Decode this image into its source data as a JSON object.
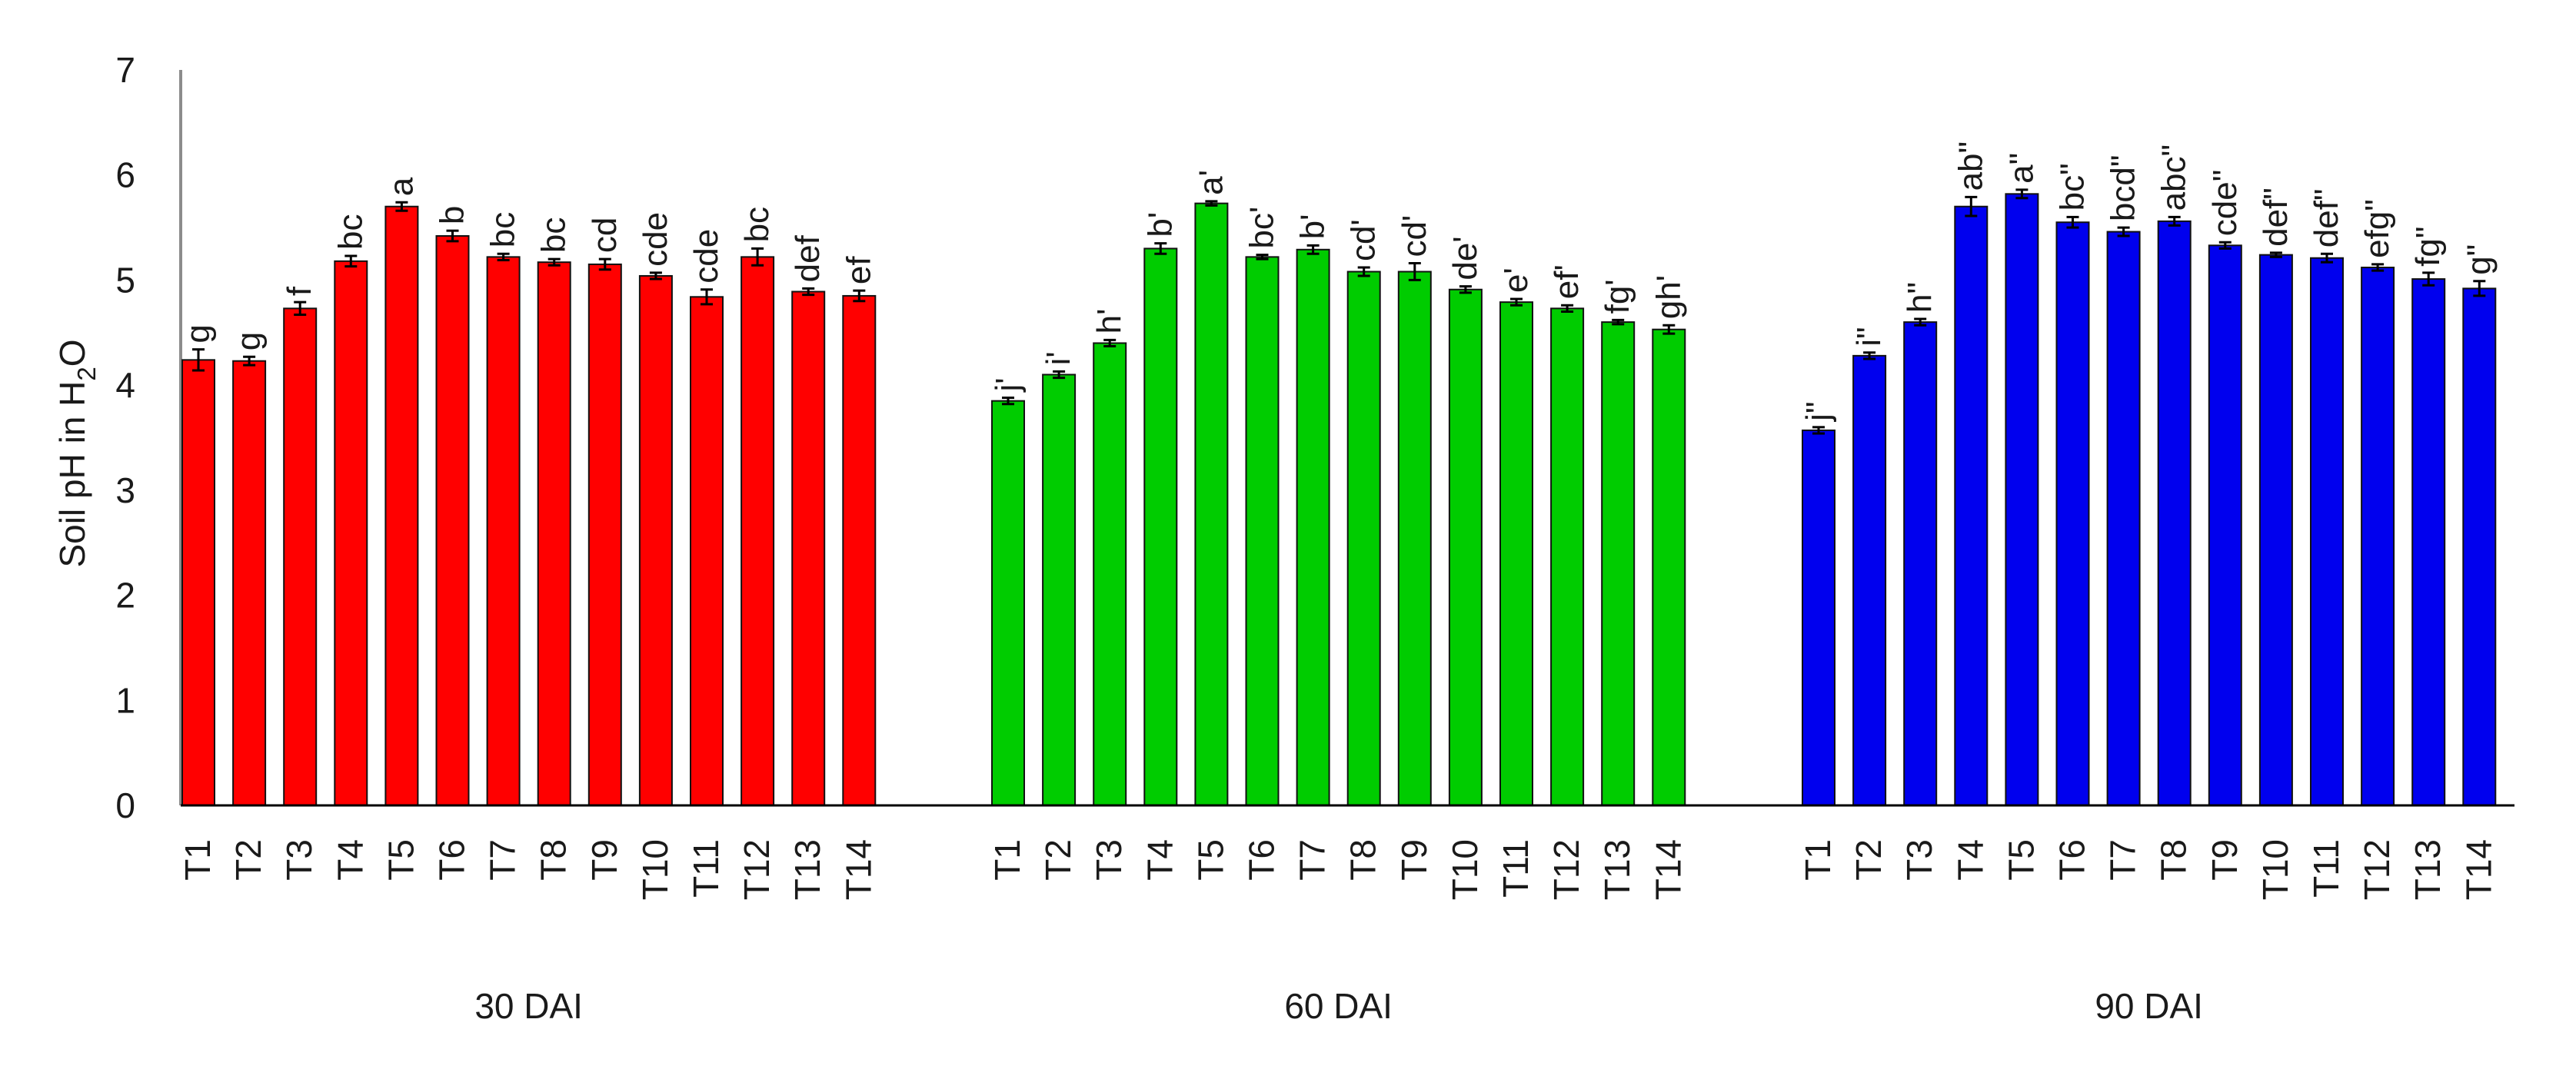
{
  "chart_data": {
    "type": "bar",
    "ylabel_parts": [
      "Soil pH in H",
      "2",
      "O"
    ],
    "ylim": [
      0,
      7
    ],
    "yticks": [
      0,
      1,
      2,
      3,
      4,
      5,
      6,
      7
    ],
    "grid": false,
    "legend": "none",
    "categories": [
      "T1",
      "T2",
      "T3",
      "T4",
      "T5",
      "T6",
      "T7",
      "T8",
      "T9",
      "T10",
      "T11",
      "T12",
      "T13",
      "T14"
    ],
    "groups": [
      {
        "name": "30 DAI",
        "color": "#ff0000",
        "values": [
          4.24,
          4.23,
          4.73,
          5.18,
          5.7,
          5.42,
          5.22,
          5.17,
          5.15,
          5.04,
          4.84,
          5.22,
          4.89,
          4.85
        ],
        "errors": [
          0.1,
          0.04,
          0.06,
          0.05,
          0.04,
          0.05,
          0.03,
          0.03,
          0.05,
          0.03,
          0.07,
          0.08,
          0.03,
          0.05
        ],
        "letters": [
          "g",
          "g",
          "f",
          "bc",
          "a",
          "b",
          "bc",
          "bc",
          "cd",
          "cde",
          "cde",
          "bc",
          "def",
          "ef"
        ]
      },
      {
        "name": "60 DAI",
        "color": "#00cc00",
        "values": [
          3.85,
          4.1,
          4.4,
          5.3,
          5.73,
          5.22,
          5.29,
          5.08,
          5.08,
          4.91,
          4.79,
          4.73,
          4.6,
          4.53
        ],
        "errors": [
          0.03,
          0.03,
          0.03,
          0.05,
          0.02,
          0.02,
          0.04,
          0.04,
          0.08,
          0.03,
          0.03,
          0.03,
          0.02,
          0.04
        ],
        "letters": [
          "j'",
          "i'",
          "h'",
          "b'",
          "a'",
          "bc'",
          "b'",
          "cd'",
          "cd'",
          "de'",
          "e'",
          "ef'",
          "fg'",
          "gh'"
        ]
      },
      {
        "name": "90 DAI",
        "color": "#0000ee",
        "values": [
          3.57,
          4.28,
          4.6,
          5.7,
          5.82,
          5.55,
          5.46,
          5.56,
          5.33,
          5.24,
          5.21,
          5.12,
          5.01,
          4.92
        ],
        "errors": [
          0.03,
          0.03,
          0.03,
          0.09,
          0.04,
          0.05,
          0.04,
          0.04,
          0.03,
          0.02,
          0.04,
          0.03,
          0.06,
          0.07
        ],
        "letters": [
          "j\"",
          "i\"",
          "h\"",
          "ab\"",
          "a\"",
          "bc\"",
          "bcd\"",
          "abc\"",
          "cde\"",
          "def\"",
          "def\"",
          "efg\"",
          "fg\"",
          "g\""
        ]
      }
    ]
  }
}
